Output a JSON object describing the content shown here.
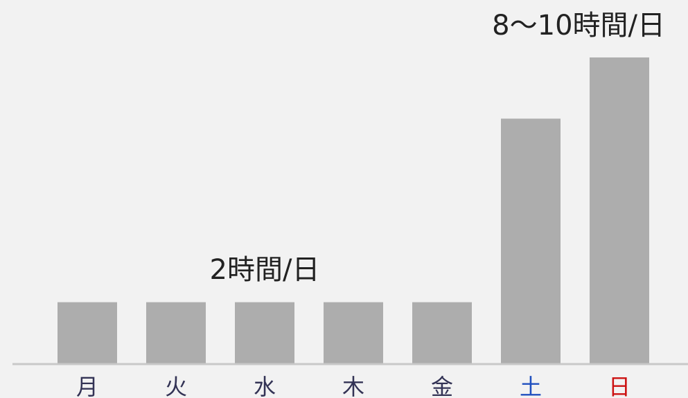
{
  "chart_data": {
    "type": "bar",
    "categories": [
      "月",
      "火",
      "水",
      "木",
      "金",
      "土",
      "日"
    ],
    "values": [
      2,
      2,
      2,
      2,
      2,
      8,
      10
    ],
    "ylim": [
      0,
      10
    ],
    "grid": false,
    "annotations": {
      "weekday": "2時間/日",
      "weekend": "8〜10時間/日"
    },
    "colors": {
      "bar": "#adadad",
      "axis": "#c8c8c8",
      "tick_default": "#333355",
      "tick_saturday": "#1f4fbf",
      "tick_sunday": "#cc1111",
      "background": "#f2f2f2"
    }
  }
}
